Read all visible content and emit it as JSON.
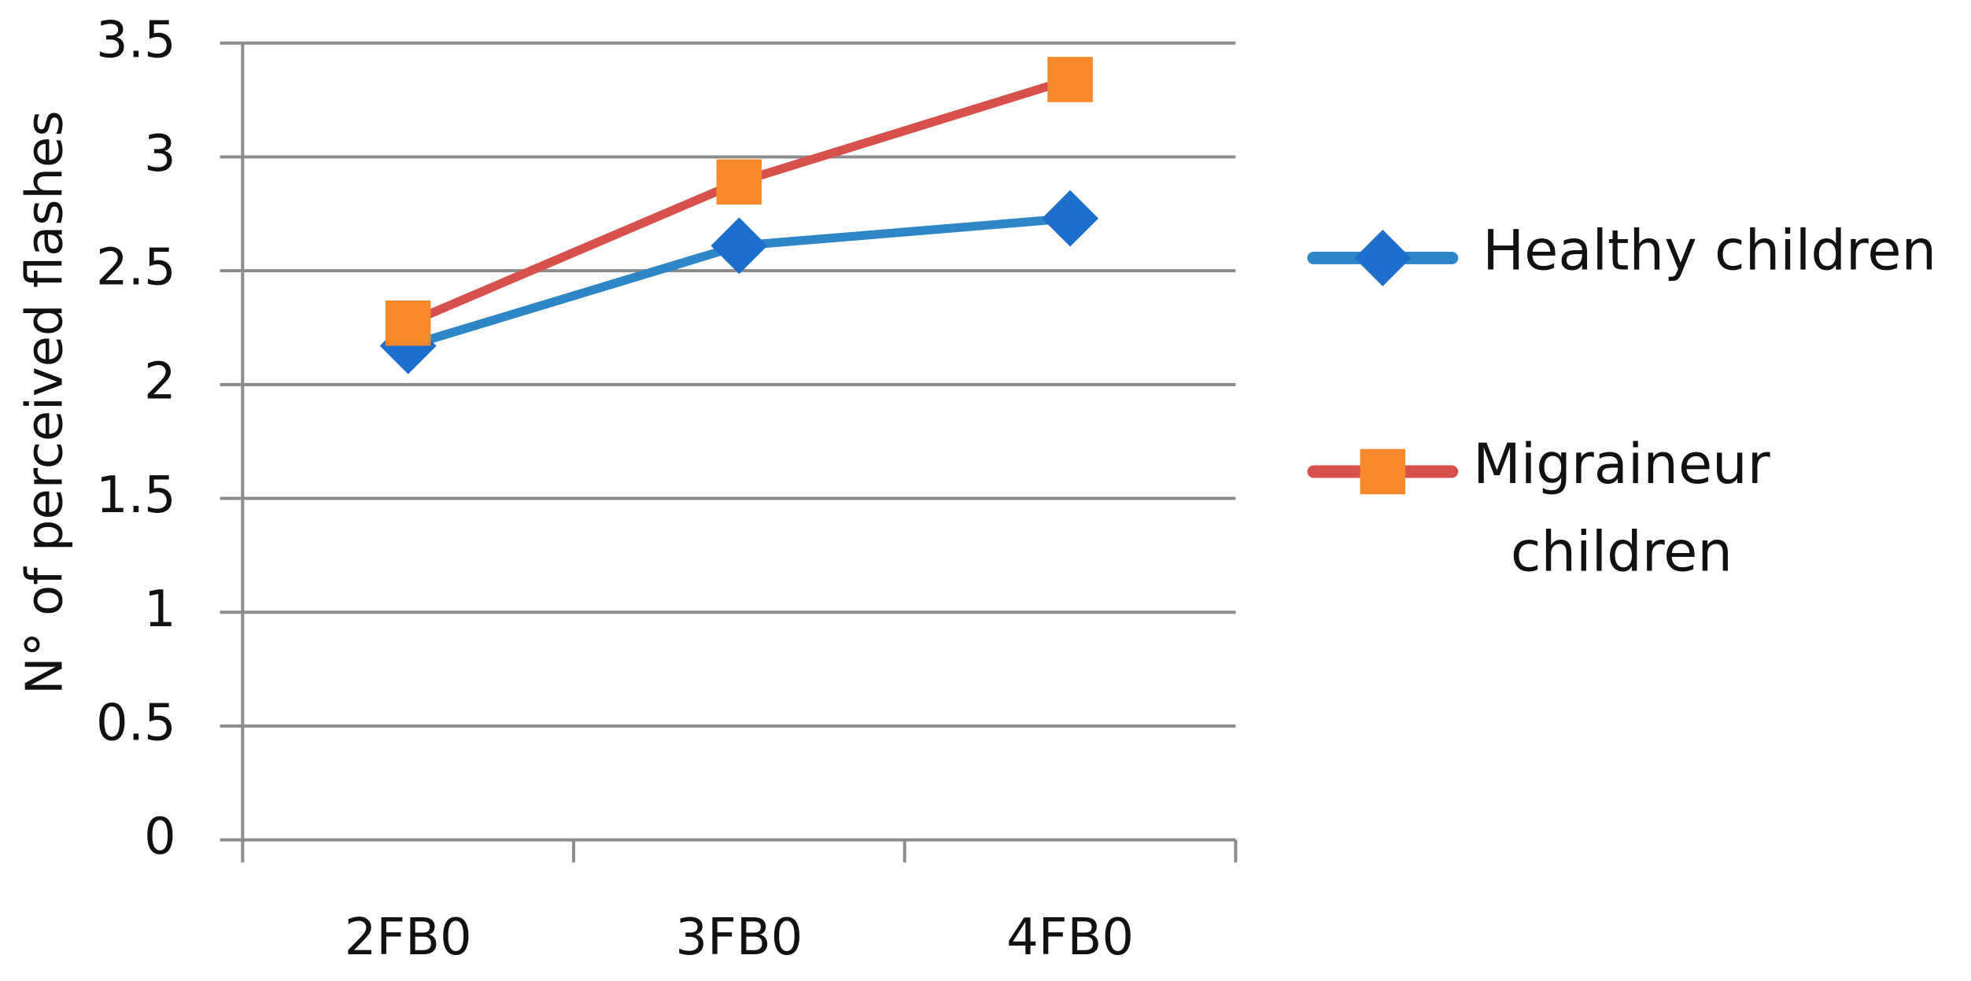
{
  "chart_data": {
    "type": "line",
    "y_label": "N° of perceived flashes",
    "categories": [
      "2FB0",
      "3FB0",
      "4FB0"
    ],
    "series": [
      {
        "name": "Healthy children",
        "color": "#2f86c6",
        "marker": "diamond",
        "marker_color": "#1f6ecb",
        "values": [
          2.17,
          2.61,
          2.73
        ]
      },
      {
        "name": "Migraineur children",
        "color": "#d8504c",
        "marker": "square",
        "marker_color": "#f7882c",
        "values": [
          2.27,
          2.89,
          3.34
        ]
      }
    ],
    "ylim": [
      0,
      3.5
    ],
    "yticks": [
      0,
      {
        "value": 0.5,
        "label": "0.5"
      },
      1,
      {
        "value": 1.5,
        "label": "1.5"
      },
      2,
      {
        "value": 2.5,
        "label": "2.5"
      },
      3,
      {
        "value": 3.5,
        "label": "3.5"
      }
    ],
    "grid": true,
    "legend": "right"
  }
}
